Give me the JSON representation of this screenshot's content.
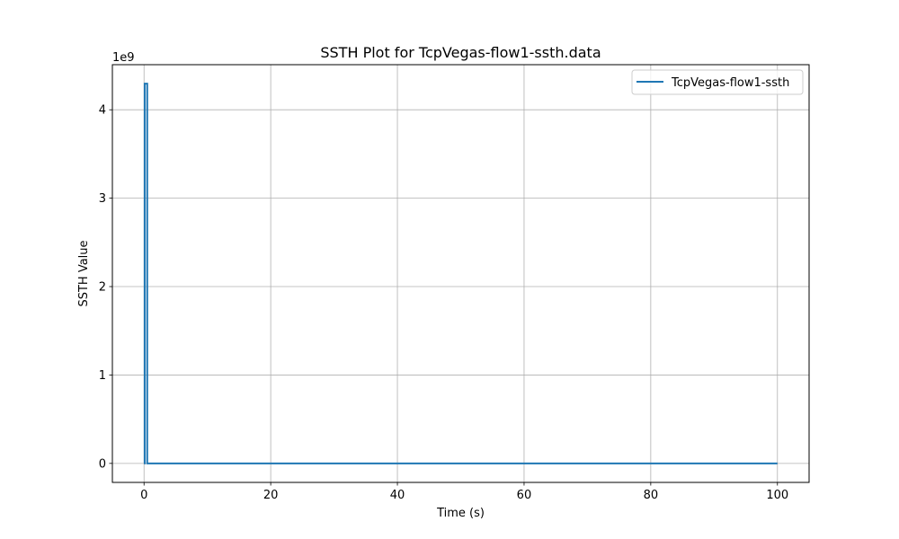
{
  "chart_data": {
    "type": "line",
    "title": "SSTH Plot for TcpVegas-flow1-ssth.data",
    "xlabel": "Time (s)",
    "ylabel": "SSTH Value",
    "y_offset_label": "1e9",
    "xlim": [
      -5,
      105
    ],
    "ylim": [
      -0.215,
      4.51
    ],
    "x_ticks": [
      0,
      20,
      40,
      60,
      80,
      100
    ],
    "x_tick_labels": [
      "0",
      "20",
      "40",
      "60",
      "80",
      "100"
    ],
    "y_ticks": [
      0,
      1,
      2,
      3,
      4
    ],
    "y_tick_labels": [
      "0",
      "1",
      "2",
      "3",
      "4"
    ],
    "grid": true,
    "legend_position": "top-right",
    "series": [
      {
        "name": "TcpVegas-flow1-ssth",
        "color": "#1f77b4",
        "x": [
          0.0,
          0.1,
          0.1,
          0.5,
          0.5,
          100.0
        ],
        "y": [
          0.0,
          0.0,
          4.295,
          4.295,
          0.0,
          0.0
        ]
      }
    ]
  }
}
